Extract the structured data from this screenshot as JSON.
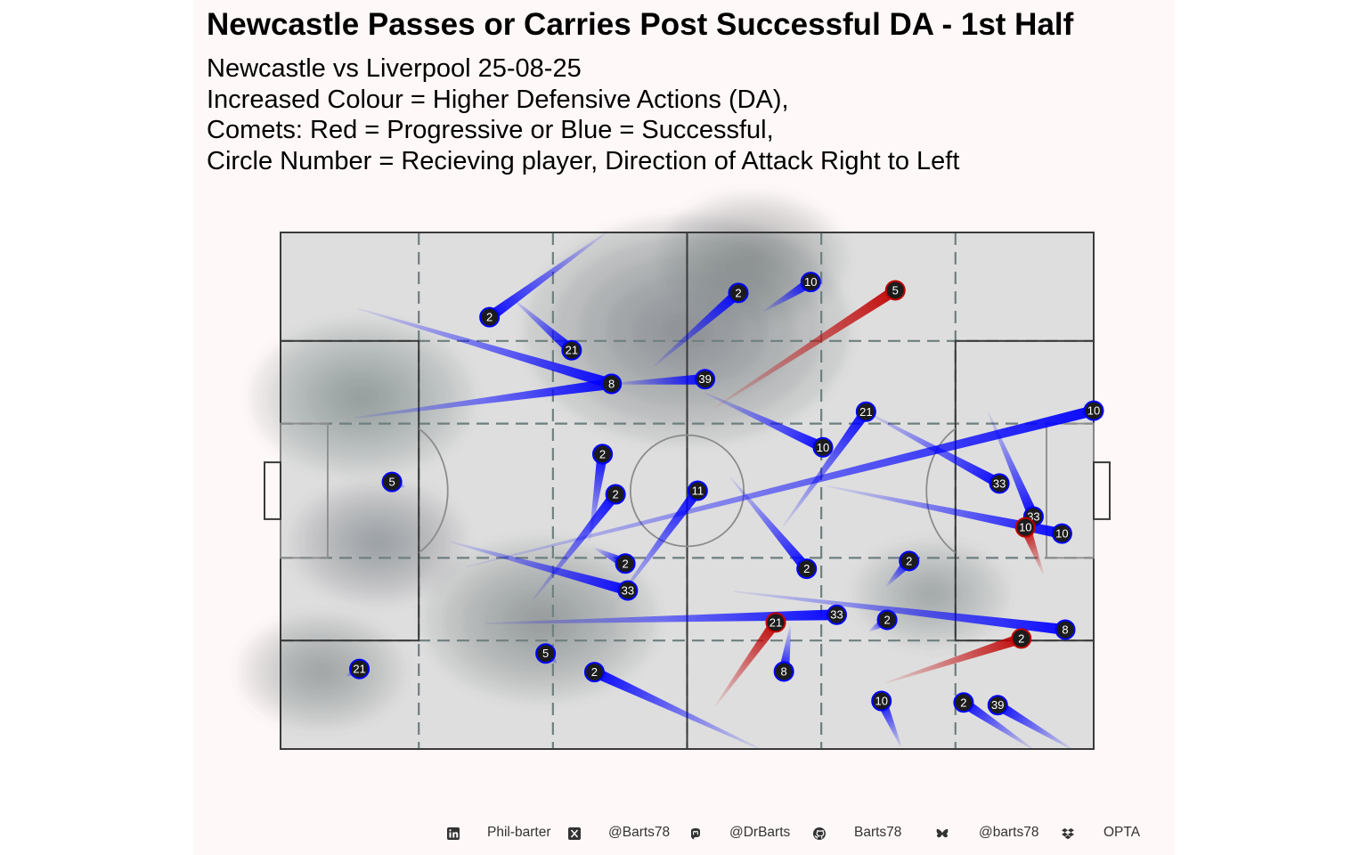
{
  "title": "Newcastle Passes or Carries Post Successful DA - 1st Half",
  "subtitle_lines": [
    "Newcastle vs Liverpool 25-08-25",
    "Increased Colour = Higher Defensive Actions (DA),",
    "Comets: Red = Progressive or Blue = Successful,",
    "Circle Number = Recieving player, Direction of Attack Right to Left"
  ],
  "colors": {
    "panel_bg": "#fff8f8",
    "pitch_fill": "#dedede",
    "pitch_line": "#3a3a3a",
    "zone_line": "#6f7f7f",
    "successful": "#0000ff",
    "progressive": "#c00000",
    "marker_fill": "#1c1c1c",
    "density": "#5c666a"
  },
  "chart_data": {
    "type": "scatter",
    "description_units": "Opta pitch coordinates: x 0-100 (length), y 0-100 (width, 100 = top)",
    "xlim": [
      0,
      100
    ],
    "ylim": [
      0,
      100
    ],
    "density_hotspots": [
      {
        "x": 50,
        "y": 81,
        "intensity": 1.0
      },
      {
        "x": 10,
        "y": 68,
        "intensity": 0.55
      },
      {
        "x": 32,
        "y": 25,
        "intensity": 0.6
      },
      {
        "x": 12,
        "y": 40,
        "intensity": 0.35
      },
      {
        "x": 58,
        "y": 95,
        "intensity": 0.4
      },
      {
        "x": 5,
        "y": 15,
        "intensity": 0.3
      },
      {
        "x": 80,
        "y": 30,
        "intensity": 0.25
      }
    ],
    "actions": [
      {
        "player": "2",
        "type": "successful",
        "start_x": 40.1,
        "start_y": 100.0,
        "end_x": 25.7,
        "end_y": 83.6
      },
      {
        "player": "21",
        "type": "successful",
        "start_x": 28.6,
        "start_y": 87.1,
        "end_x": 35.8,
        "end_y": 77.2
      },
      {
        "player": "2",
        "type": "successful",
        "start_x": 45.9,
        "start_y": 74.1,
        "end_x": 56.3,
        "end_y": 88.3
      },
      {
        "player": "10",
        "type": "successful",
        "start_x": 59.4,
        "start_y": 84.7,
        "end_x": 65.2,
        "end_y": 90.4
      },
      {
        "player": "5",
        "type": "progressive",
        "start_x": 53.3,
        "start_y": 66.0,
        "end_x": 75.6,
        "end_y": 88.8
      },
      {
        "player": "8",
        "type": "successful",
        "start_x": 9.4,
        "start_y": 85.3,
        "end_x": 40.7,
        "end_y": 70.7
      },
      {
        "player": "8",
        "type": "successful",
        "start_x": 9.1,
        "start_y": 64.1,
        "end_x": 40.7,
        "end_y": 70.7
      },
      {
        "player": "39",
        "type": "successful",
        "start_x": 40.7,
        "start_y": 70.7,
        "end_x": 52.2,
        "end_y": 71.6
      },
      {
        "player": "21",
        "type": "successful",
        "start_x": 61.8,
        "start_y": 43.1,
        "end_x": 72.0,
        "end_y": 65.3
      },
      {
        "player": "10",
        "type": "successful",
        "start_x": 52.1,
        "start_y": 69.0,
        "end_x": 66.7,
        "end_y": 58.4
      },
      {
        "player": "33",
        "type": "successful",
        "start_x": 72.0,
        "start_y": 65.3,
        "end_x": 88.4,
        "end_y": 51.4
      },
      {
        "player": "10",
        "type": "successful",
        "start_x": 22.9,
        "start_y": 35.3,
        "end_x": 100.0,
        "end_y": 65.5
      },
      {
        "player": "33",
        "type": "successful",
        "start_x": 87.0,
        "start_y": 65.3,
        "end_x": 92.6,
        "end_y": 45.0
      },
      {
        "player": "10",
        "type": "progressive",
        "start_x": 93.8,
        "start_y": 33.9,
        "end_x": 91.6,
        "end_y": 42.9
      },
      {
        "player": "10",
        "type": "successful",
        "start_x": 67.2,
        "start_y": 50.9,
        "end_x": 96.1,
        "end_y": 41.7
      },
      {
        "player": "5",
        "type": "successful",
        "start_x": 15.3,
        "start_y": 50.7,
        "end_x": 13.7,
        "end_y": 51.7
      },
      {
        "player": "2",
        "type": "successful",
        "start_x": 38.6,
        "start_y": 56.0,
        "end_x": 39.6,
        "end_y": 57.1
      },
      {
        "player": "2",
        "type": "successful",
        "start_x": 38.0,
        "start_y": 40.3,
        "end_x": 39.6,
        "end_y": 57.1
      },
      {
        "player": "2",
        "type": "successful",
        "start_x": 31.0,
        "start_y": 28.8,
        "end_x": 41.2,
        "end_y": 49.3
      },
      {
        "player": "11",
        "type": "successful",
        "start_x": 41.4,
        "start_y": 28.8,
        "end_x": 51.3,
        "end_y": 50.0
      },
      {
        "player": "2",
        "type": "successful",
        "start_x": 55.3,
        "start_y": 52.6,
        "end_x": 64.7,
        "end_y": 34.9
      },
      {
        "player": "2",
        "type": "successful",
        "start_x": 74.5,
        "start_y": 31.5,
        "end_x": 77.3,
        "end_y": 36.4
      },
      {
        "player": "2",
        "type": "successful",
        "start_x": 38.6,
        "start_y": 38.9,
        "end_x": 42.4,
        "end_y": 35.9
      },
      {
        "player": "33",
        "type": "successful",
        "start_x": 20.9,
        "start_y": 40.1,
        "end_x": 42.7,
        "end_y": 30.7
      },
      {
        "player": "33",
        "type": "successful",
        "start_x": 25.2,
        "start_y": 24.3,
        "end_x": 68.4,
        "end_y": 26.0
      },
      {
        "player": "8",
        "type": "successful",
        "start_x": 55.7,
        "start_y": 30.5,
        "end_x": 96.5,
        "end_y": 23.1
      },
      {
        "player": "21",
        "type": "progressive",
        "start_x": 53.5,
        "start_y": 8.4,
        "end_x": 60.9,
        "end_y": 24.5
      },
      {
        "player": "2",
        "type": "successful",
        "start_x": 72.4,
        "start_y": 22.8,
        "end_x": 74.6,
        "end_y": 25.0
      },
      {
        "player": "2",
        "type": "progressive",
        "start_x": 74.4,
        "start_y": 12.8,
        "end_x": 91.1,
        "end_y": 21.4
      },
      {
        "player": "8",
        "type": "successful",
        "start_x": 62.7,
        "start_y": 23.8,
        "end_x": 61.9,
        "end_y": 15.0
      },
      {
        "player": "5",
        "type": "successful",
        "start_x": 34.0,
        "start_y": 16.6,
        "end_x": 32.6,
        "end_y": 18.5
      },
      {
        "player": "2",
        "type": "successful",
        "start_x": 59.0,
        "start_y": 0.0,
        "end_x": 38.6,
        "end_y": 14.9
      },
      {
        "player": "21",
        "type": "successful",
        "start_x": 8.1,
        "start_y": 14.1,
        "end_x": 9.7,
        "end_y": 15.5
      },
      {
        "player": "10",
        "type": "successful",
        "start_x": 76.3,
        "start_y": 0.5,
        "end_x": 73.9,
        "end_y": 9.3
      },
      {
        "player": "2",
        "type": "successful",
        "start_x": 92.5,
        "start_y": 0.0,
        "end_x": 84.0,
        "end_y": 9.0
      },
      {
        "player": "39",
        "type": "successful",
        "start_x": 97.3,
        "start_y": 0.0,
        "end_x": 88.2,
        "end_y": 8.5
      }
    ]
  },
  "footer": {
    "linkedin_icon": "linkedin-icon",
    "linkedin_text": "Phil-barter",
    "x_icon": "x-twitter-icon",
    "x_text": "@Barts78",
    "mastodon_icon": "mastodon-icon",
    "mastodon_text": "@DrBarts",
    "github_icon": "github-icon",
    "github_text": "Barts78",
    "bluesky_icon": "bluesky-icon",
    "bluesky_text": "@barts78",
    "source_icon": "dropbox-icon",
    "source_text": "OPTA"
  }
}
